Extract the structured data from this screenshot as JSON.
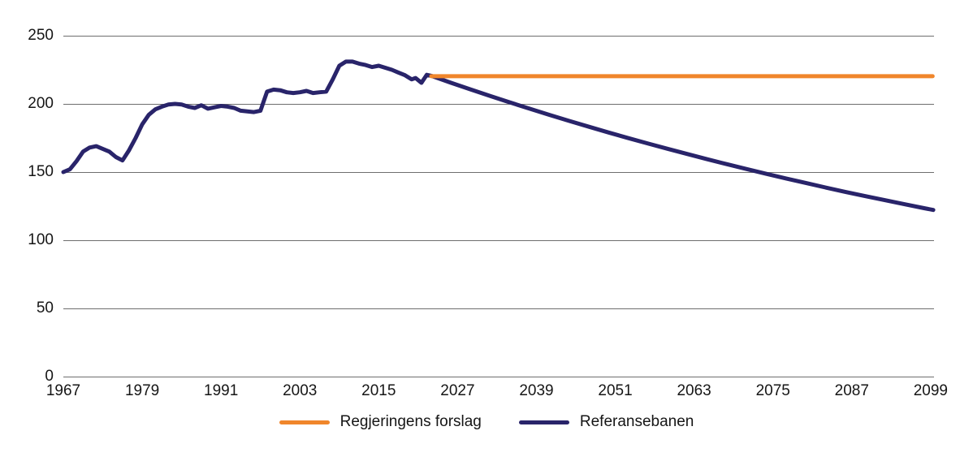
{
  "figure": {
    "background": "#ffffff"
  },
  "chart_data": {
    "type": "line",
    "title": "",
    "xlabel": "",
    "ylabel": "",
    "xlim": [
      1967,
      2100
    ],
    "ylim": [
      0,
      250
    ],
    "x_ticks": [
      1967,
      1979,
      1991,
      2003,
      2015,
      2027,
      2039,
      2051,
      2063,
      2075,
      2087,
      2099
    ],
    "y_ticks": [
      0,
      50,
      100,
      150,
      200,
      250
    ],
    "grid": "horizontal",
    "gridline_color": "#6e6e6e",
    "text_color": "#161616",
    "legend_position": "bottom-center",
    "series": [
      {
        "name": "Regjeringens forslag",
        "color": "#F0862B",
        "points": [
          [
            2023,
            220.3
          ],
          [
            2099.3,
            220.3
          ]
        ]
      },
      {
        "name": "Referansebanen",
        "color": "#29246A",
        "points": [
          [
            1967,
            150
          ],
          [
            1968,
            152
          ],
          [
            1969,
            158
          ],
          [
            1970,
            165
          ],
          [
            1971,
            168
          ],
          [
            1972,
            169
          ],
          [
            1973,
            167
          ],
          [
            1974,
            165
          ],
          [
            1975,
            161
          ],
          [
            1976,
            158.5
          ],
          [
            1977,
            166
          ],
          [
            1978,
            175
          ],
          [
            1979,
            185
          ],
          [
            1980,
            192
          ],
          [
            1981,
            196
          ],
          [
            1982,
            198
          ],
          [
            1983,
            199.5
          ],
          [
            1984,
            200
          ],
          [
            1985,
            199.5
          ],
          [
            1986,
            198
          ],
          [
            1987,
            197
          ],
          [
            1988,
            199
          ],
          [
            1989,
            196.5
          ],
          [
            1990,
            197.5
          ],
          [
            1991,
            198.5
          ],
          [
            1992,
            198
          ],
          [
            1993,
            197
          ],
          [
            1994,
            195
          ],
          [
            1995,
            194.5
          ],
          [
            1996,
            194
          ],
          [
            1997,
            195
          ],
          [
            1998,
            209
          ],
          [
            1999,
            210.5
          ],
          [
            2000,
            210
          ],
          [
            2001,
            208.5
          ],
          [
            2002,
            208
          ],
          [
            2003,
            208.5
          ],
          [
            2004,
            209.5
          ],
          [
            2005,
            208
          ],
          [
            2006,
            208.5
          ],
          [
            2007,
            209
          ],
          [
            2008,
            218
          ],
          [
            2009,
            228
          ],
          [
            2010,
            231
          ],
          [
            2011,
            231
          ],
          [
            2012,
            229.5
          ],
          [
            2013,
            228.5
          ],
          [
            2014,
            227
          ],
          [
            2015,
            228
          ],
          [
            2016,
            226.5
          ],
          [
            2017,
            225
          ],
          [
            2018,
            223
          ],
          [
            2019,
            221
          ],
          [
            2020,
            218
          ],
          [
            2020.6,
            219
          ],
          [
            2021.5,
            215.5
          ],
          [
            2022.3,
            221.3
          ],
          [
            2023,
            220.6
          ],
          [
            2026,
            215.5
          ],
          [
            2029,
            210.6
          ],
          [
            2032,
            205.7
          ],
          [
            2035,
            201
          ],
          [
            2038,
            196.4
          ],
          [
            2041,
            191.9
          ],
          [
            2044,
            187.5
          ],
          [
            2047,
            183.2
          ],
          [
            2050,
            179
          ],
          [
            2053,
            174.9
          ],
          [
            2056,
            170.9
          ],
          [
            2059,
            167
          ],
          [
            2062,
            163.2
          ],
          [
            2065,
            159.4
          ],
          [
            2068,
            155.8
          ],
          [
            2071,
            152.2
          ],
          [
            2074,
            148.7
          ],
          [
            2077,
            145.3
          ],
          [
            2080,
            142
          ],
          [
            2083,
            138.7
          ],
          [
            2086,
            135.5
          ],
          [
            2089,
            132.4
          ],
          [
            2092,
            129.4
          ],
          [
            2095,
            126.4
          ],
          [
            2098,
            123.5
          ],
          [
            2099.4,
            122.2
          ]
        ]
      }
    ]
  }
}
